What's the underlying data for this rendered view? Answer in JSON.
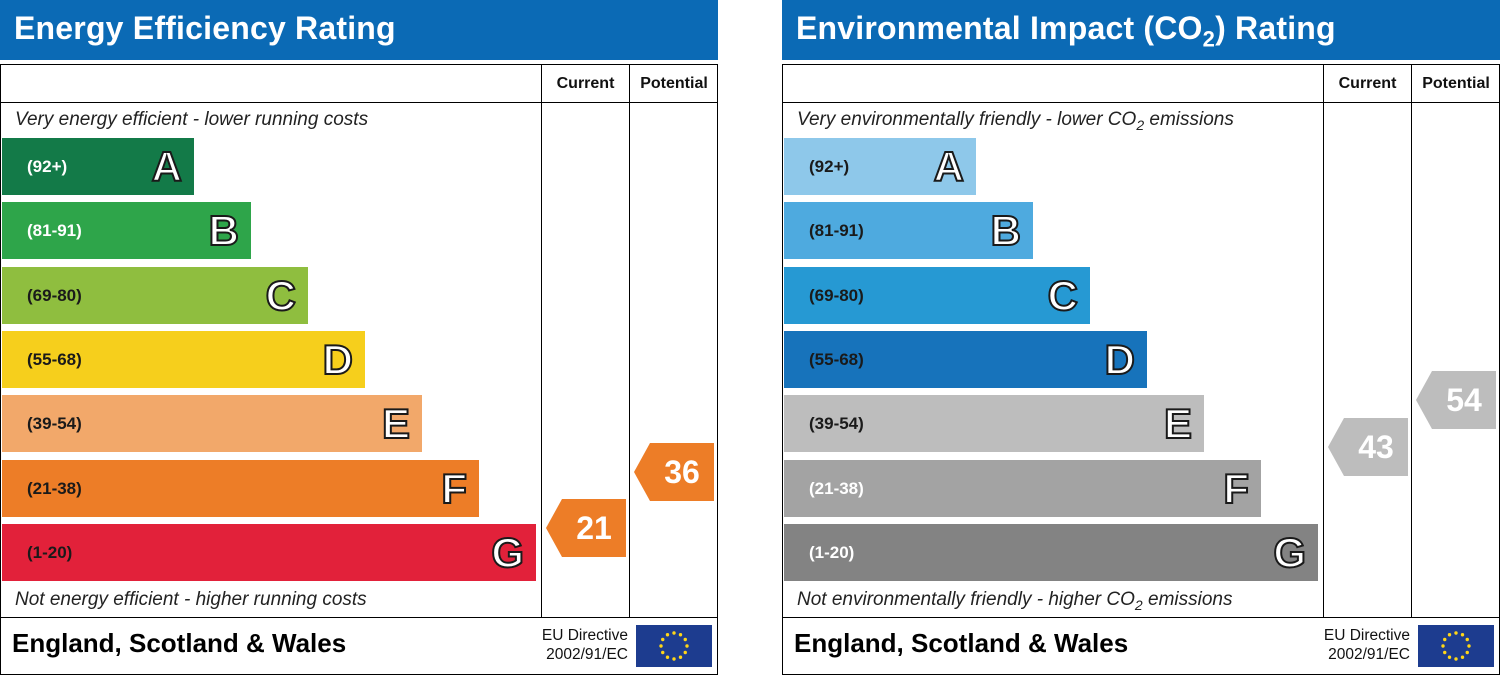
{
  "chart_data": [
    {
      "type": "bar",
      "title": "Energy Efficiency Rating",
      "columns": [
        "Current",
        "Potential"
      ],
      "caption_top": "Very energy efficient - lower running costs",
      "caption_bottom": "Not energy efficient - higher running costs",
      "bands": [
        {
          "range": "(92+)",
          "letter": "A",
          "color": "#137a48",
          "text_color": "#ffffff"
        },
        {
          "range": "(81-91)",
          "letter": "B",
          "color": "#2ea54a",
          "text_color": "#ffffff"
        },
        {
          "range": "(69-80)",
          "letter": "C",
          "color": "#8fbe3f",
          "text_color": "#1a1a1a"
        },
        {
          "range": "(55-68)",
          "letter": "D",
          "color": "#f6cf1c",
          "text_color": "#1a1a1a"
        },
        {
          "range": "(39-54)",
          "letter": "E",
          "color": "#f2a86a",
          "text_color": "#1a1a1a"
        },
        {
          "range": "(21-38)",
          "letter": "F",
          "color": "#ed7d27",
          "text_color": "#1a1a1a"
        },
        {
          "range": "(1-20)",
          "letter": "G",
          "color": "#e2213a",
          "text_color": "#1a1a1a"
        }
      ],
      "current": {
        "value": 21,
        "label": "21",
        "color": "#ed7d27"
      },
      "potential": {
        "value": 36,
        "label": "36",
        "color": "#ed7d27"
      },
      "footer": "England, Scotland & Wales",
      "directive_line1": "EU Directive",
      "directive_line2": "2002/91/EC",
      "header_color": "#0b6ab5"
    },
    {
      "type": "bar",
      "title_prefix": "Environmental Impact (CO",
      "title_sub": "2",
      "title_suffix": ") Rating",
      "columns": [
        "Current",
        "Potential"
      ],
      "caption_top_prefix": "Very environmentally friendly - lower CO",
      "caption_top_sub": "2",
      "caption_top_suffix": " emissions",
      "caption_bottom_prefix": "Not environmentally friendly - higher CO",
      "caption_bottom_sub": "2",
      "caption_bottom_suffix": " emissions",
      "bands": [
        {
          "range": "(92+)",
          "letter": "A",
          "color": "#8ec8ea",
          "text_color": "#1a1a1a"
        },
        {
          "range": "(81-91)",
          "letter": "B",
          "color": "#4eaadf",
          "text_color": "#1a1a1a"
        },
        {
          "range": "(69-80)",
          "letter": "C",
          "color": "#2699d3",
          "text_color": "#1a1a1a"
        },
        {
          "range": "(55-68)",
          "letter": "D",
          "color": "#1773bb",
          "text_color": "#1a1a1a"
        },
        {
          "range": "(39-54)",
          "letter": "E",
          "color": "#bdbdbd",
          "text_color": "#1a1a1a"
        },
        {
          "range": "(21-38)",
          "letter": "F",
          "color": "#a3a3a3",
          "text_color": "#ffffff"
        },
        {
          "range": "(1-20)",
          "letter": "G",
          "color": "#838383",
          "text_color": "#ffffff"
        }
      ],
      "current": {
        "value": 43,
        "label": "43",
        "color": "#bdbdbd"
      },
      "potential": {
        "value": 54,
        "label": "54",
        "color": "#bdbdbd"
      },
      "footer": "England, Scotland & Wales",
      "directive_line1": "EU Directive",
      "directive_line2": "2002/91/EC",
      "header_color": "#0b6ab5"
    }
  ]
}
